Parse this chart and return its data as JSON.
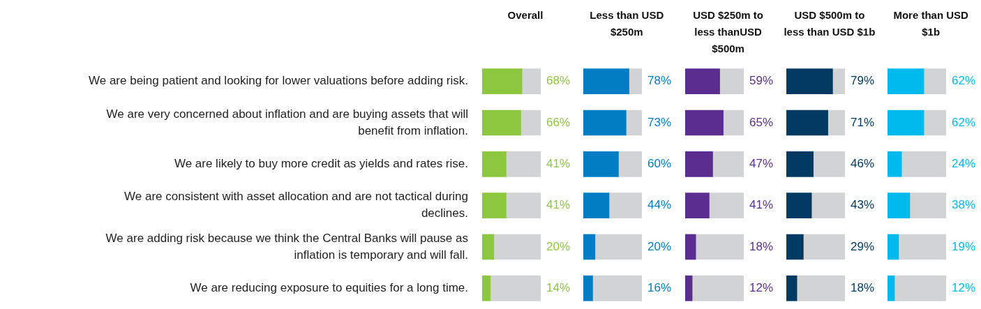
{
  "chart_data": [
    {
      "type": "bar",
      "orientation": "horizontal",
      "stacked": true,
      "title": "Overall",
      "categories": [
        "We are being patient and looking for lower valuations before adding risk.",
        "We are very concerned about inflation and are buying assets that will benefit from inflation.",
        "We are likely to buy more credit as yields and rates rise.",
        "We are consistent with asset allocation and are not tactical during declines.",
        "We are adding risk because we think the Central Banks will pause as inflation is temporary and will fall.",
        "We are reducing exposure to equities for a long time."
      ],
      "xlim": [
        0,
        100
      ],
      "tick_labels": "y",
      "series": [
        {
          "color": "#8dc63f",
          "values": [
            68,
            66,
            41,
            41,
            20,
            14
          ],
          "value_labels": [
            "68%",
            "66%",
            "41%",
            "41%",
            "20%",
            "14%"
          ]
        },
        {
          "color": "#d1d3d4",
          "values": [
            32,
            34,
            59,
            59,
            80,
            86
          ]
        }
      ]
    },
    {
      "type": "bar",
      "orientation": "horizontal",
      "stacked": true,
      "title": "Less than USD $250m",
      "categories": [
        null,
        null,
        null,
        null,
        null,
        null
      ],
      "xlim": [
        0,
        100
      ],
      "tick_labels": false,
      "series": [
        {
          "color": "#007dc3",
          "values": [
            78,
            73,
            60,
            44,
            20,
            16
          ],
          "value_labels": [
            "78%",
            "73%",
            "60%",
            "44%",
            "20%",
            "16%"
          ]
        },
        {
          "color": "#d1d3d4",
          "values": [
            22,
            27,
            40,
            56,
            80,
            84
          ]
        }
      ]
    },
    {
      "type": "bar",
      "orientation": "horizontal",
      "stacked": true,
      "title": "USD $250m to less thanUSD $500m",
      "categories": [
        null,
        null,
        null,
        null,
        null,
        null
      ],
      "xlim": [
        0,
        100
      ],
      "tick_labels": false,
      "series": [
        {
          "color": "#5b2d90",
          "values": [
            59,
            65,
            47,
            41,
            18,
            12
          ],
          "value_labels": [
            "59%",
            "65%",
            "47%",
            "41%",
            "18%",
            "12%"
          ]
        },
        {
          "color": "#d1d3d4",
          "values": [
            41,
            35,
            53,
            59,
            82,
            88
          ]
        }
      ]
    },
    {
      "type": "bar",
      "orientation": "horizontal",
      "stacked": true,
      "title": "USD $500m to less than USD $1b",
      "categories": [
        null,
        null,
        null,
        null,
        null,
        null
      ],
      "xlim": [
        0,
        100
      ],
      "tick_labels": false,
      "series": [
        {
          "color": "#003a63",
          "values": [
            79,
            71,
            46,
            43,
            29,
            18
          ],
          "value_labels": [
            "79%",
            "71%",
            "46%",
            "43%",
            "29%",
            "18%"
          ]
        },
        {
          "color": "#d1d3d4",
          "values": [
            21,
            29,
            54,
            57,
            71,
            82
          ]
        }
      ]
    },
    {
      "type": "bar",
      "orientation": "horizontal",
      "stacked": true,
      "title": "More than USD $1b",
      "categories": [
        null,
        null,
        null,
        null,
        null,
        null
      ],
      "xlim": [
        0,
        100
      ],
      "tick_labels": false,
      "series": [
        {
          "color": "#00b9ed",
          "values": [
            62,
            62,
            24,
            38,
            19,
            12
          ],
          "value_labels": [
            "62%",
            "62%",
            "24%",
            "38%",
            "19%",
            "12%"
          ]
        },
        {
          "color": "#d1d3d4",
          "values": [
            38,
            38,
            76,
            62,
            81,
            88
          ]
        }
      ]
    }
  ]
}
